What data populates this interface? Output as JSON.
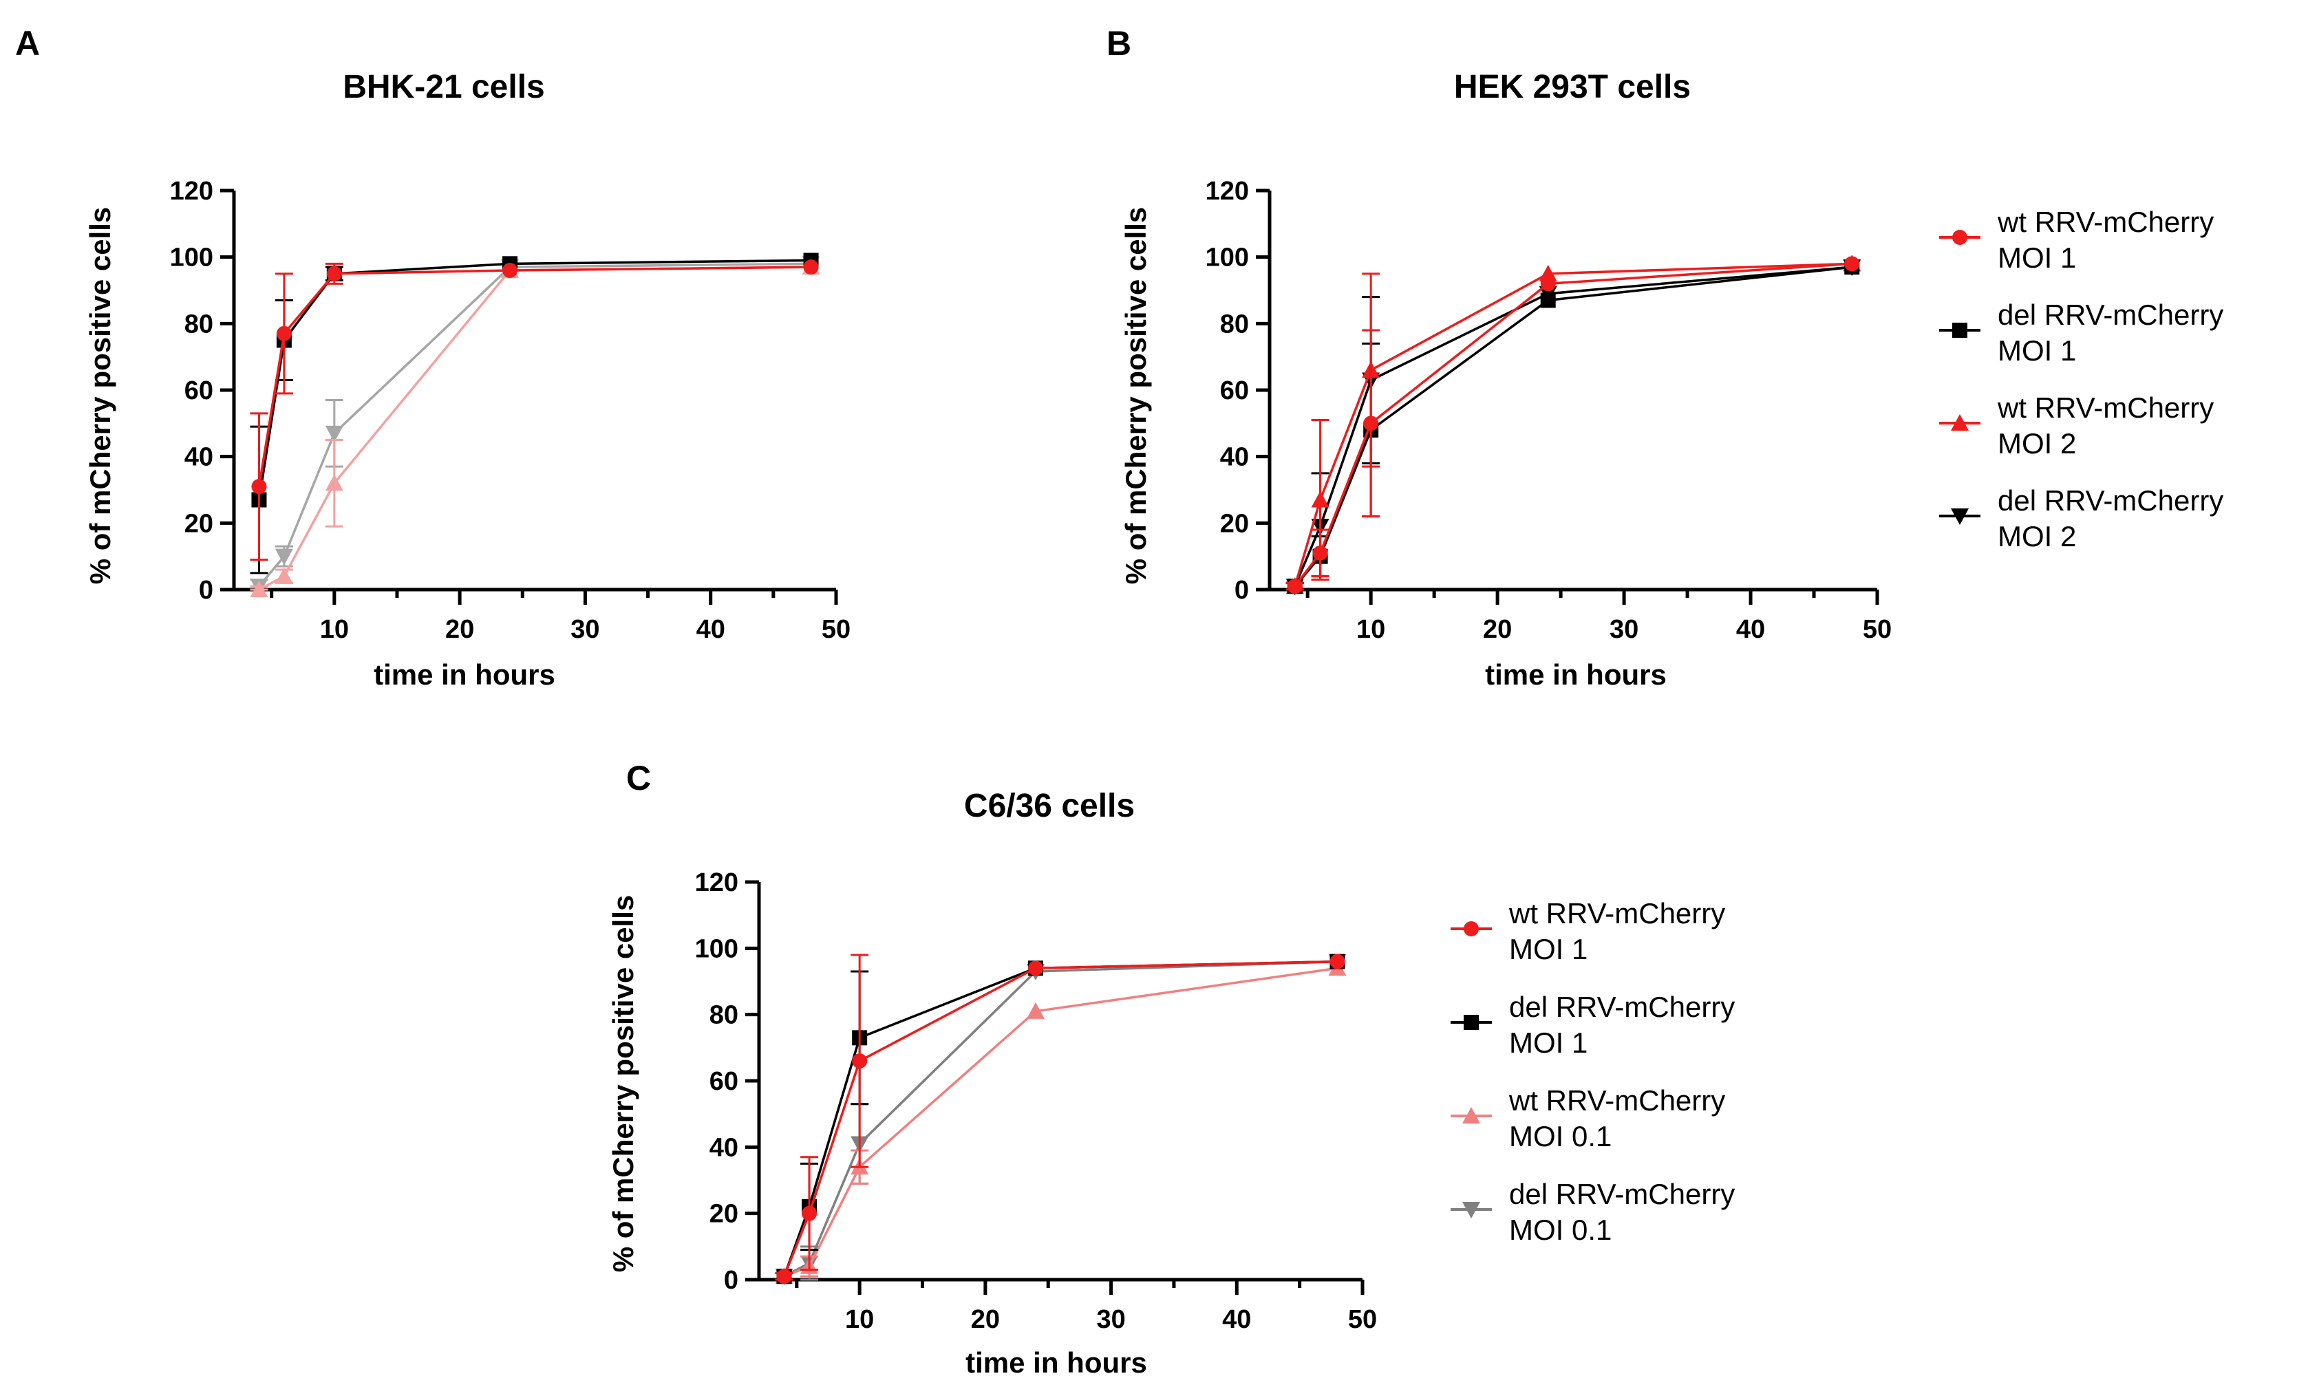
{
  "chart_data": [
    {
      "type": "line",
      "panel": "A",
      "title": "BHK-21 cells",
      "xlabel": "time in hours",
      "ylabel": "% of mCherry positive cells",
      "xlim": [
        2,
        50
      ],
      "ylim": [
        0,
        120
      ],
      "xticks": [
        10,
        20,
        30,
        40,
        50
      ],
      "yticks": [
        0,
        20,
        40,
        60,
        80,
        100,
        120
      ],
      "series": [
        {
          "name": "del RRV-mCherry MOI 0.1",
          "color": "#a6a6a6",
          "marker": "triangle-down",
          "x": [
            4,
            6,
            10,
            24,
            48
          ],
          "y": [
            1,
            10,
            47,
            97,
            98
          ],
          "err": [
            2,
            3,
            10,
            0,
            0
          ]
        },
        {
          "name": "wt RRV-mCherry MOI 0.1",
          "color": "#f4a1a1",
          "marker": "triangle-up",
          "x": [
            4,
            6,
            10,
            24,
            48
          ],
          "y": [
            0,
            4,
            32,
            96,
            97
          ],
          "err": [
            1,
            2,
            13,
            0,
            0
          ]
        },
        {
          "name": "del RRV-mCherry MOI 1",
          "color": "#000000",
          "marker": "square",
          "x": [
            4,
            6,
            10,
            24,
            48
          ],
          "y": [
            27,
            75,
            95,
            98,
            99
          ],
          "err": [
            22,
            12,
            2,
            0,
            0
          ]
        },
        {
          "name": "wt RRV-mCherry MOI 1",
          "color": "#ee1c1c",
          "marker": "circle",
          "x": [
            4,
            6,
            10,
            24,
            48
          ],
          "y": [
            31,
            77,
            95,
            96,
            97
          ],
          "err": [
            22,
            18,
            3,
            0,
            0
          ]
        }
      ]
    },
    {
      "type": "line",
      "panel": "B",
      "title": "HEK 293T cells",
      "xlabel": "time in hours",
      "ylabel": "% of mCherry positive cells",
      "xlim": [
        2,
        50
      ],
      "ylim": [
        0,
        120
      ],
      "xticks": [
        10,
        20,
        30,
        40,
        50
      ],
      "yticks": [
        0,
        20,
        40,
        60,
        80,
        100,
        120
      ],
      "series": [
        {
          "name": "del RRV-mCherry MOI 2",
          "color": "#000000",
          "marker": "triangle-down",
          "x": [
            4,
            6,
            10,
            24,
            48
          ],
          "y": [
            1,
            19,
            63,
            89,
            97
          ],
          "err": [
            1,
            16,
            25,
            0,
            0
          ]
        },
        {
          "name": "wt RRV-mCherry MOI 2",
          "color": "#ee1c1c",
          "marker": "triangle-up",
          "x": [
            4,
            6,
            10,
            24,
            48
          ],
          "y": [
            1,
            27,
            66,
            95,
            98
          ],
          "err": [
            1,
            24,
            29,
            0,
            0
          ]
        },
        {
          "name": "del RRV-mCherry MOI 1",
          "color": "#000000",
          "marker": "square",
          "x": [
            4,
            6,
            10,
            24,
            48
          ],
          "y": [
            1,
            10,
            48,
            87,
            97
          ],
          "err": [
            1,
            6,
            26,
            0,
            0
          ]
        },
        {
          "name": "wt RRV-mCherry MOI 1",
          "color": "#ee1c1c",
          "marker": "circle",
          "x": [
            4,
            6,
            10,
            24,
            48
          ],
          "y": [
            1,
            11,
            50,
            92,
            98
          ],
          "err": [
            1,
            7,
            28,
            0,
            0
          ]
        }
      ],
      "legend": [
        {
          "line1": "wt RRV-mCherry",
          "line2": "MOI 1",
          "color": "#ee1c1c",
          "marker": "circle"
        },
        {
          "line1": "del RRV-mCherry",
          "line2": "MOI 1",
          "color": "#000000",
          "marker": "square"
        },
        {
          "line1": "wt RRV-mCherry",
          "line2": "MOI 2",
          "color": "#ee1c1c",
          "marker": "triangle-up"
        },
        {
          "line1": "del RRV-mCherry",
          "line2": "MOI 2",
          "color": "#000000",
          "marker": "triangle-down"
        }
      ]
    },
    {
      "type": "line",
      "panel": "C",
      "title": "C6/36 cells",
      "xlabel": "time in hours",
      "ylabel": "% of mCherry positive cells",
      "xlim": [
        2,
        50
      ],
      "ylim": [
        0,
        120
      ],
      "xticks": [
        10,
        20,
        30,
        40,
        50
      ],
      "yticks": [
        0,
        20,
        40,
        60,
        80,
        100,
        120
      ],
      "series": [
        {
          "name": "del RRV-mCherry MOI 0.1",
          "color": "#808080",
          "marker": "triangle-down",
          "x": [
            4,
            6,
            10,
            24,
            48
          ],
          "y": [
            1,
            5,
            41,
            93,
            96
          ],
          "err": [
            1,
            5,
            12,
            0,
            0
          ]
        },
        {
          "name": "wt RRV-mCherry MOI 0.1",
          "color": "#f08080",
          "marker": "triangle-up",
          "x": [
            4,
            6,
            10,
            24,
            48
          ],
          "y": [
            1,
            4,
            34,
            81,
            94
          ],
          "err": [
            1,
            3,
            5,
            0,
            0
          ]
        },
        {
          "name": "del RRV-mCherry MOI 1",
          "color": "#000000",
          "marker": "square",
          "x": [
            4,
            6,
            10,
            24,
            48
          ],
          "y": [
            1,
            22,
            73,
            94,
            96
          ],
          "err": [
            1,
            13,
            20,
            0,
            0
          ]
        },
        {
          "name": "wt RRV-mCherry MOI 1",
          "color": "#ee1c1c",
          "marker": "circle",
          "x": [
            4,
            6,
            10,
            24,
            48
          ],
          "y": [
            1,
            20,
            66,
            94,
            96
          ],
          "err": [
            1,
            17,
            32,
            0,
            0
          ]
        }
      ],
      "legend": [
        {
          "line1": "wt RRV-mCherry",
          "line2": "MOI 1",
          "color": "#ee1c1c",
          "marker": "circle"
        },
        {
          "line1": "del RRV-mCherry",
          "line2": "MOI 1",
          "color": "#000000",
          "marker": "square"
        },
        {
          "line1": "wt RRV-mCherry",
          "line2": "MOI 0.1",
          "color": "#f08080",
          "marker": "triangle-up"
        },
        {
          "line1": "del RRV-mCherry",
          "line2": "MOI 0.1",
          "color": "#808080",
          "marker": "triangle-down"
        }
      ]
    }
  ]
}
